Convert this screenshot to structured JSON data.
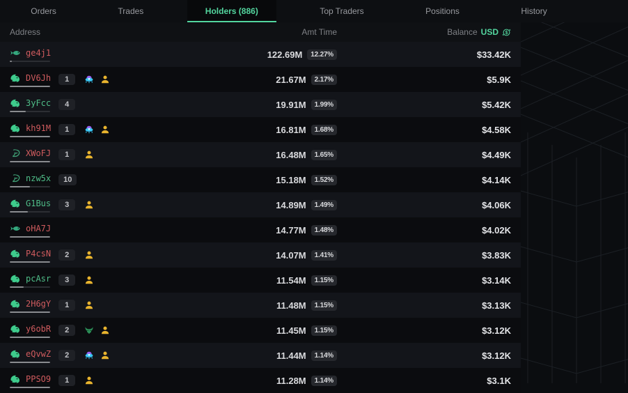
{
  "colors": {
    "accent_green": "#53d69f",
    "address_red": "#cf5b5e",
    "address_green": "#4fbd88",
    "flag_gold": "#e9b42e",
    "row_light": "#13151a",
    "row_dark": "#0b0c0f"
  },
  "tabs": [
    {
      "label": "Orders",
      "active": false
    },
    {
      "label": "Trades",
      "active": false
    },
    {
      "label": "Holders (886)",
      "active": true
    },
    {
      "label": "Top Traders",
      "active": false
    },
    {
      "label": "Positions",
      "active": false
    },
    {
      "label": "History",
      "active": false
    }
  ],
  "header": {
    "address": "Address",
    "amt_time": "Amt Time",
    "balance": "Balance",
    "currency": "USD"
  },
  "holders": [
    {
      "address": "ge4j1",
      "address_color": "red",
      "tier": "fish",
      "count": null,
      "flags": [],
      "bar_fill": 6,
      "amount": "122.69M",
      "percent": "12.27%",
      "balance": "$33.42K"
    },
    {
      "address": "DV6Jh",
      "address_color": "red",
      "tier": "dolphin",
      "count": "1",
      "flags": [
        "ufo",
        "person"
      ],
      "bar_fill": 100,
      "amount": "21.67M",
      "percent": "2.17%",
      "balance": "$5.9K"
    },
    {
      "address": "3yFcc",
      "address_color": "green",
      "tier": "dolphin",
      "count": "4",
      "flags": [],
      "bar_fill": 40,
      "amount": "19.91M",
      "percent": "1.99%",
      "balance": "$5.42K"
    },
    {
      "address": "kh91M",
      "address_color": "red",
      "tier": "dolphin",
      "count": "1",
      "flags": [
        "ufo",
        "person"
      ],
      "bar_fill": 100,
      "amount": "16.81M",
      "percent": "1.68%",
      "balance": "$4.58K"
    },
    {
      "address": "XWoFJ",
      "address_color": "red",
      "tier": "shrimp",
      "count": "1",
      "flags": [
        "person"
      ],
      "bar_fill": 100,
      "amount": "16.48M",
      "percent": "1.65%",
      "balance": "$4.49K"
    },
    {
      "address": "nzw5x",
      "address_color": "green",
      "tier": "shrimp",
      "count": "10",
      "flags": [],
      "bar_fill": 50,
      "amount": "15.18M",
      "percent": "1.52%",
      "balance": "$4.14K"
    },
    {
      "address": "G1Bus",
      "address_color": "green",
      "tier": "dolphin",
      "count": "3",
      "flags": [
        "person"
      ],
      "bar_fill": 45,
      "amount": "14.89M",
      "percent": "1.49%",
      "balance": "$4.06K"
    },
    {
      "address": "oHA7J",
      "address_color": "red",
      "tier": "fish",
      "count": null,
      "flags": [],
      "bar_fill": 100,
      "amount": "14.77M",
      "percent": "1.48%",
      "balance": "$4.02K"
    },
    {
      "address": "P4csN",
      "address_color": "red",
      "tier": "dolphin",
      "count": "2",
      "flags": [
        "person"
      ],
      "bar_fill": 100,
      "amount": "14.07M",
      "percent": "1.41%",
      "balance": "$3.83K"
    },
    {
      "address": "pcAsr",
      "address_color": "green",
      "tier": "dolphin",
      "count": "3",
      "flags": [
        "person"
      ],
      "bar_fill": 35,
      "amount": "11.54M",
      "percent": "1.15%",
      "balance": "$3.14K"
    },
    {
      "address": "2H6gY",
      "address_color": "red",
      "tier": "dolphin",
      "count": "1",
      "flags": [
        "person"
      ],
      "bar_fill": 100,
      "amount": "11.48M",
      "percent": "1.15%",
      "balance": "$3.13K"
    },
    {
      "address": "y6obR",
      "address_color": "red",
      "tier": "dolphin",
      "count": "2",
      "flags": [
        "bull",
        "person"
      ],
      "bar_fill": 100,
      "amount": "11.45M",
      "percent": "1.15%",
      "balance": "$3.12K"
    },
    {
      "address": "eQvwZ",
      "address_color": "red",
      "tier": "dolphin",
      "count": "2",
      "flags": [
        "ufo",
        "person"
      ],
      "bar_fill": 100,
      "amount": "11.44M",
      "percent": "1.14%",
      "balance": "$3.12K"
    },
    {
      "address": "PPSO9",
      "address_color": "red",
      "tier": "dolphin",
      "count": "1",
      "flags": [
        "person"
      ],
      "bar_fill": 100,
      "amount": "11.28M",
      "percent": "1.14%",
      "balance": "$3.1K"
    }
  ]
}
